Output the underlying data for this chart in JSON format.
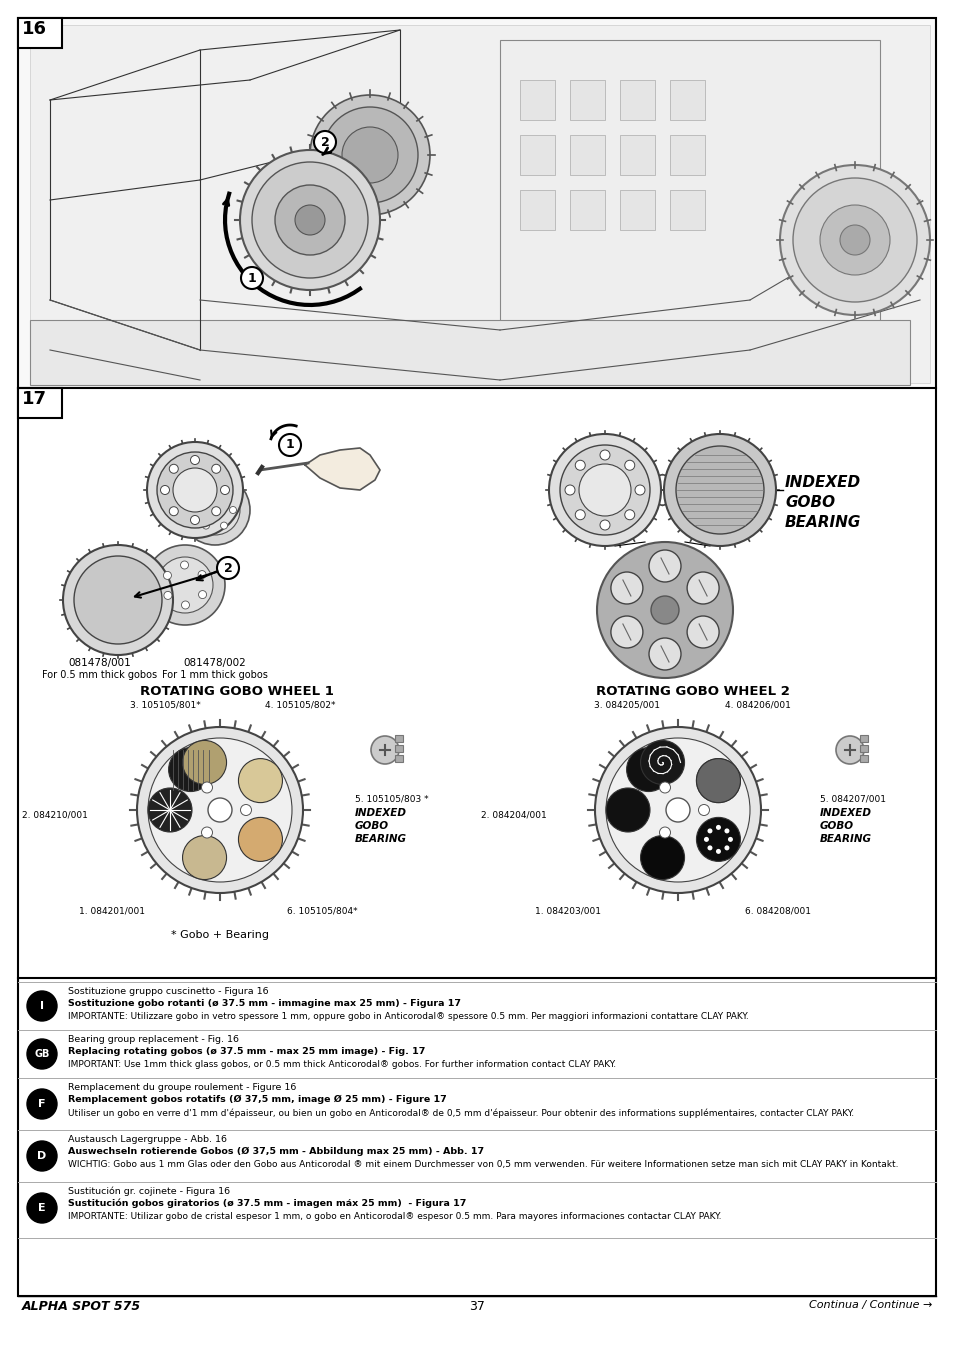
{
  "page_bg": "#ffffff",
  "footer_left": "ALPHA SPOT 575",
  "footer_center": "37",
  "footer_right": "Continua / Continue →",
  "language_sections": [
    {
      "lang": "I",
      "lines": [
        "Sostituzione gruppo cuscinetto - Figura 16",
        "Sostituzione gobo rotanti (ø 37.5 mm - immagine max 25 mm) - Figura 17",
        "IMPORTANTE: Utilizzare gobo in vetro spessore 1 mm, oppure gobo in Anticorodal® spessore 0.5 mm. Per maggiori informazioni contattare CLAY PAKY."
      ]
    },
    {
      "lang": "GB",
      "lines": [
        "Bearing group replacement - Fig. 16",
        "Replacing rotating gobos (ø 37.5 mm - max 25 mm image) - Fig. 17",
        "IMPORTANT: Use 1mm thick glass gobos, or 0.5 mm thick Anticorodal® gobos. For further information contact CLAY PAKY."
      ]
    },
    {
      "lang": "F",
      "lines": [
        "Remplacement du groupe roulement - Figure 16",
        "Remplacement gobos rotatifs (Ø 37,5 mm, image Ø 25 mm) - Figure 17",
        "Utiliser un gobo en verre d'1 mm d'épaisseur, ou bien un gobo en Anticorodal® de 0,5 mm d'épaisseur. Pour obtenir des informations supplémentaires, contacter CLAY PAKY."
      ]
    },
    {
      "lang": "D",
      "lines": [
        "Austausch Lagergruppe - Abb. 16",
        "Auswechseln rotierende Gobos (Ø 37,5 mm - Abbildung max 25 mm) - Abb. 17",
        "WICHTIG: Gobo aus 1 mm Glas oder den Gobo aus Anticorodal ® mit einem Durchmesser von 0,5 mm verwenden. Für weitere Informationen setze man sich mit CLAY PAKY in Kontakt."
      ]
    },
    {
      "lang": "E",
      "lines": [
        "Sustitución gr. cojinete - Figura 16",
        "Sustitución gobos giratorios (ø 37.5 mm - imagen máx 25 mm)  - Figura 17",
        "IMPORTANTE: Utilizar gobo de cristal espesor 1 mm, o gobo en Anticorodal® espesor 0.5 mm. Para mayores informaciones contactar CLAY PAKY."
      ]
    }
  ]
}
